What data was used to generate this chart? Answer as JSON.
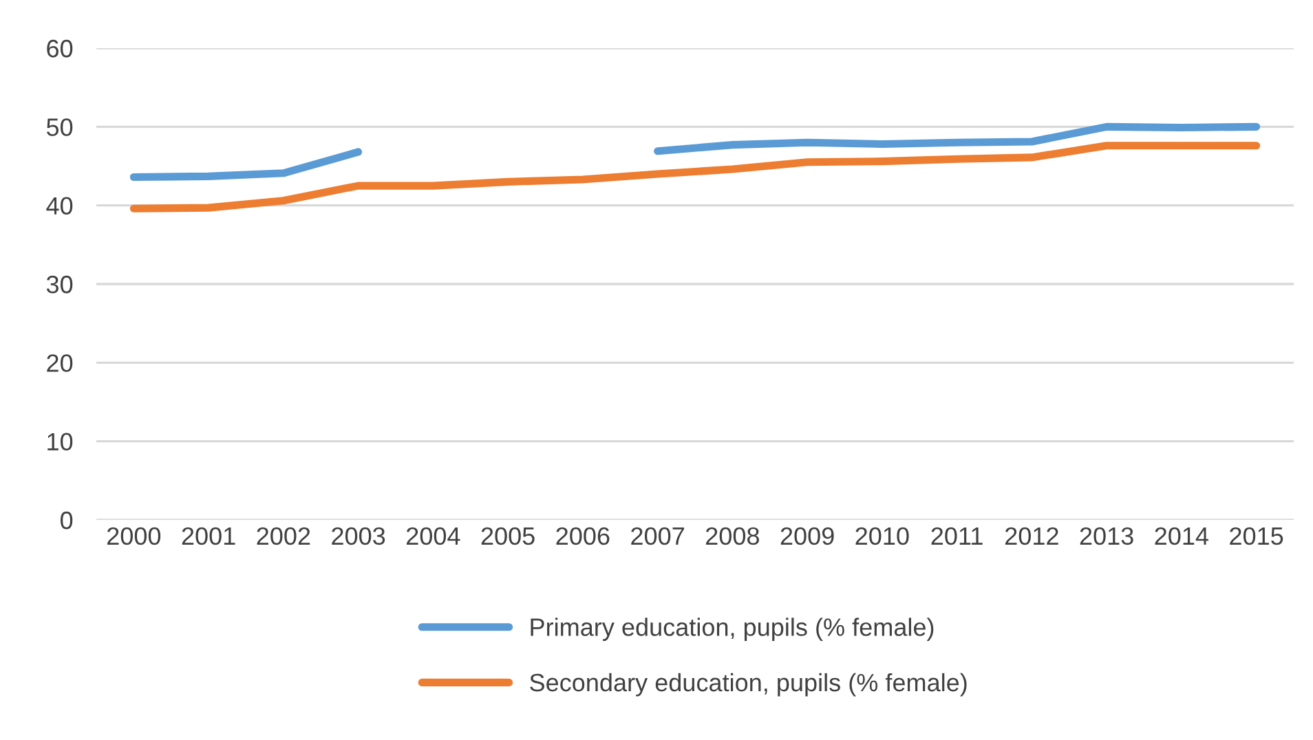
{
  "chart_data": {
    "type": "line",
    "categories": [
      "2000",
      "2001",
      "2002",
      "2003",
      "2004",
      "2005",
      "2006",
      "2007",
      "2008",
      "2009",
      "2010",
      "2011",
      "2012",
      "2013",
      "2014",
      "2015"
    ],
    "series": [
      {
        "name": "Primary education, pupils (% female)",
        "color": "#5b9bd5",
        "values": [
          43.6,
          43.7,
          44.1,
          46.8,
          null,
          null,
          null,
          46.9,
          47.7,
          48.0,
          47.8,
          48.0,
          48.1,
          50.0,
          49.9,
          50.0
        ]
      },
      {
        "name": "Secondary education, pupils (% female)",
        "color": "#ed7d31",
        "values": [
          39.6,
          39.7,
          40.6,
          42.5,
          42.5,
          43.0,
          43.3,
          44.0,
          44.6,
          45.5,
          45.6,
          45.9,
          46.1,
          47.6,
          47.6,
          47.6
        ]
      }
    ],
    "ylim": [
      0,
      60
    ],
    "yticks": [
      0,
      10,
      20,
      30,
      40,
      50,
      60
    ],
    "grid": "y",
    "legend": "bottom",
    "marker": "none",
    "line_style": "solid"
  }
}
